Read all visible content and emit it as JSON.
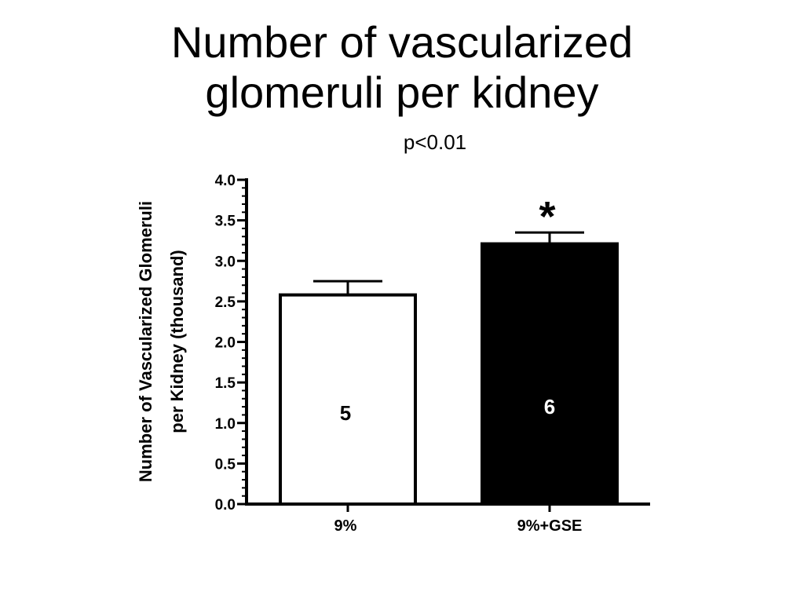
{
  "title_lines": [
    "Number of vascularized",
    "glomeruli per kidney"
  ],
  "p_value_text": "p<0.01",
  "chart_data": {
    "type": "bar",
    "categories": [
      "9%",
      "9%+GSE"
    ],
    "values": [
      2.58,
      3.21
    ],
    "errors": [
      0.17,
      0.14
    ],
    "fill_colors": [
      "#ffffff",
      "#000000"
    ],
    "n_labels": [
      "5",
      "6"
    ],
    "n_label_colors": [
      "#000000",
      "#ffffff"
    ],
    "significance_marks": [
      "",
      "*"
    ],
    "ylabel_lines": [
      "Number of Vascularized Glomeruli",
      "per Kidney (thousand)"
    ],
    "xlabel": "",
    "ylim": [
      0,
      4.0
    ],
    "yticks": [
      "0.0",
      "0.5",
      "1.0",
      "1.5",
      "2.0",
      "2.5",
      "3.0",
      "3.5",
      "4.0"
    ],
    "ytick_values": [
      0,
      0.5,
      1.0,
      1.5,
      2.0,
      2.5,
      3.0,
      3.5,
      4.0
    ],
    "grid": false,
    "legend": "none"
  }
}
